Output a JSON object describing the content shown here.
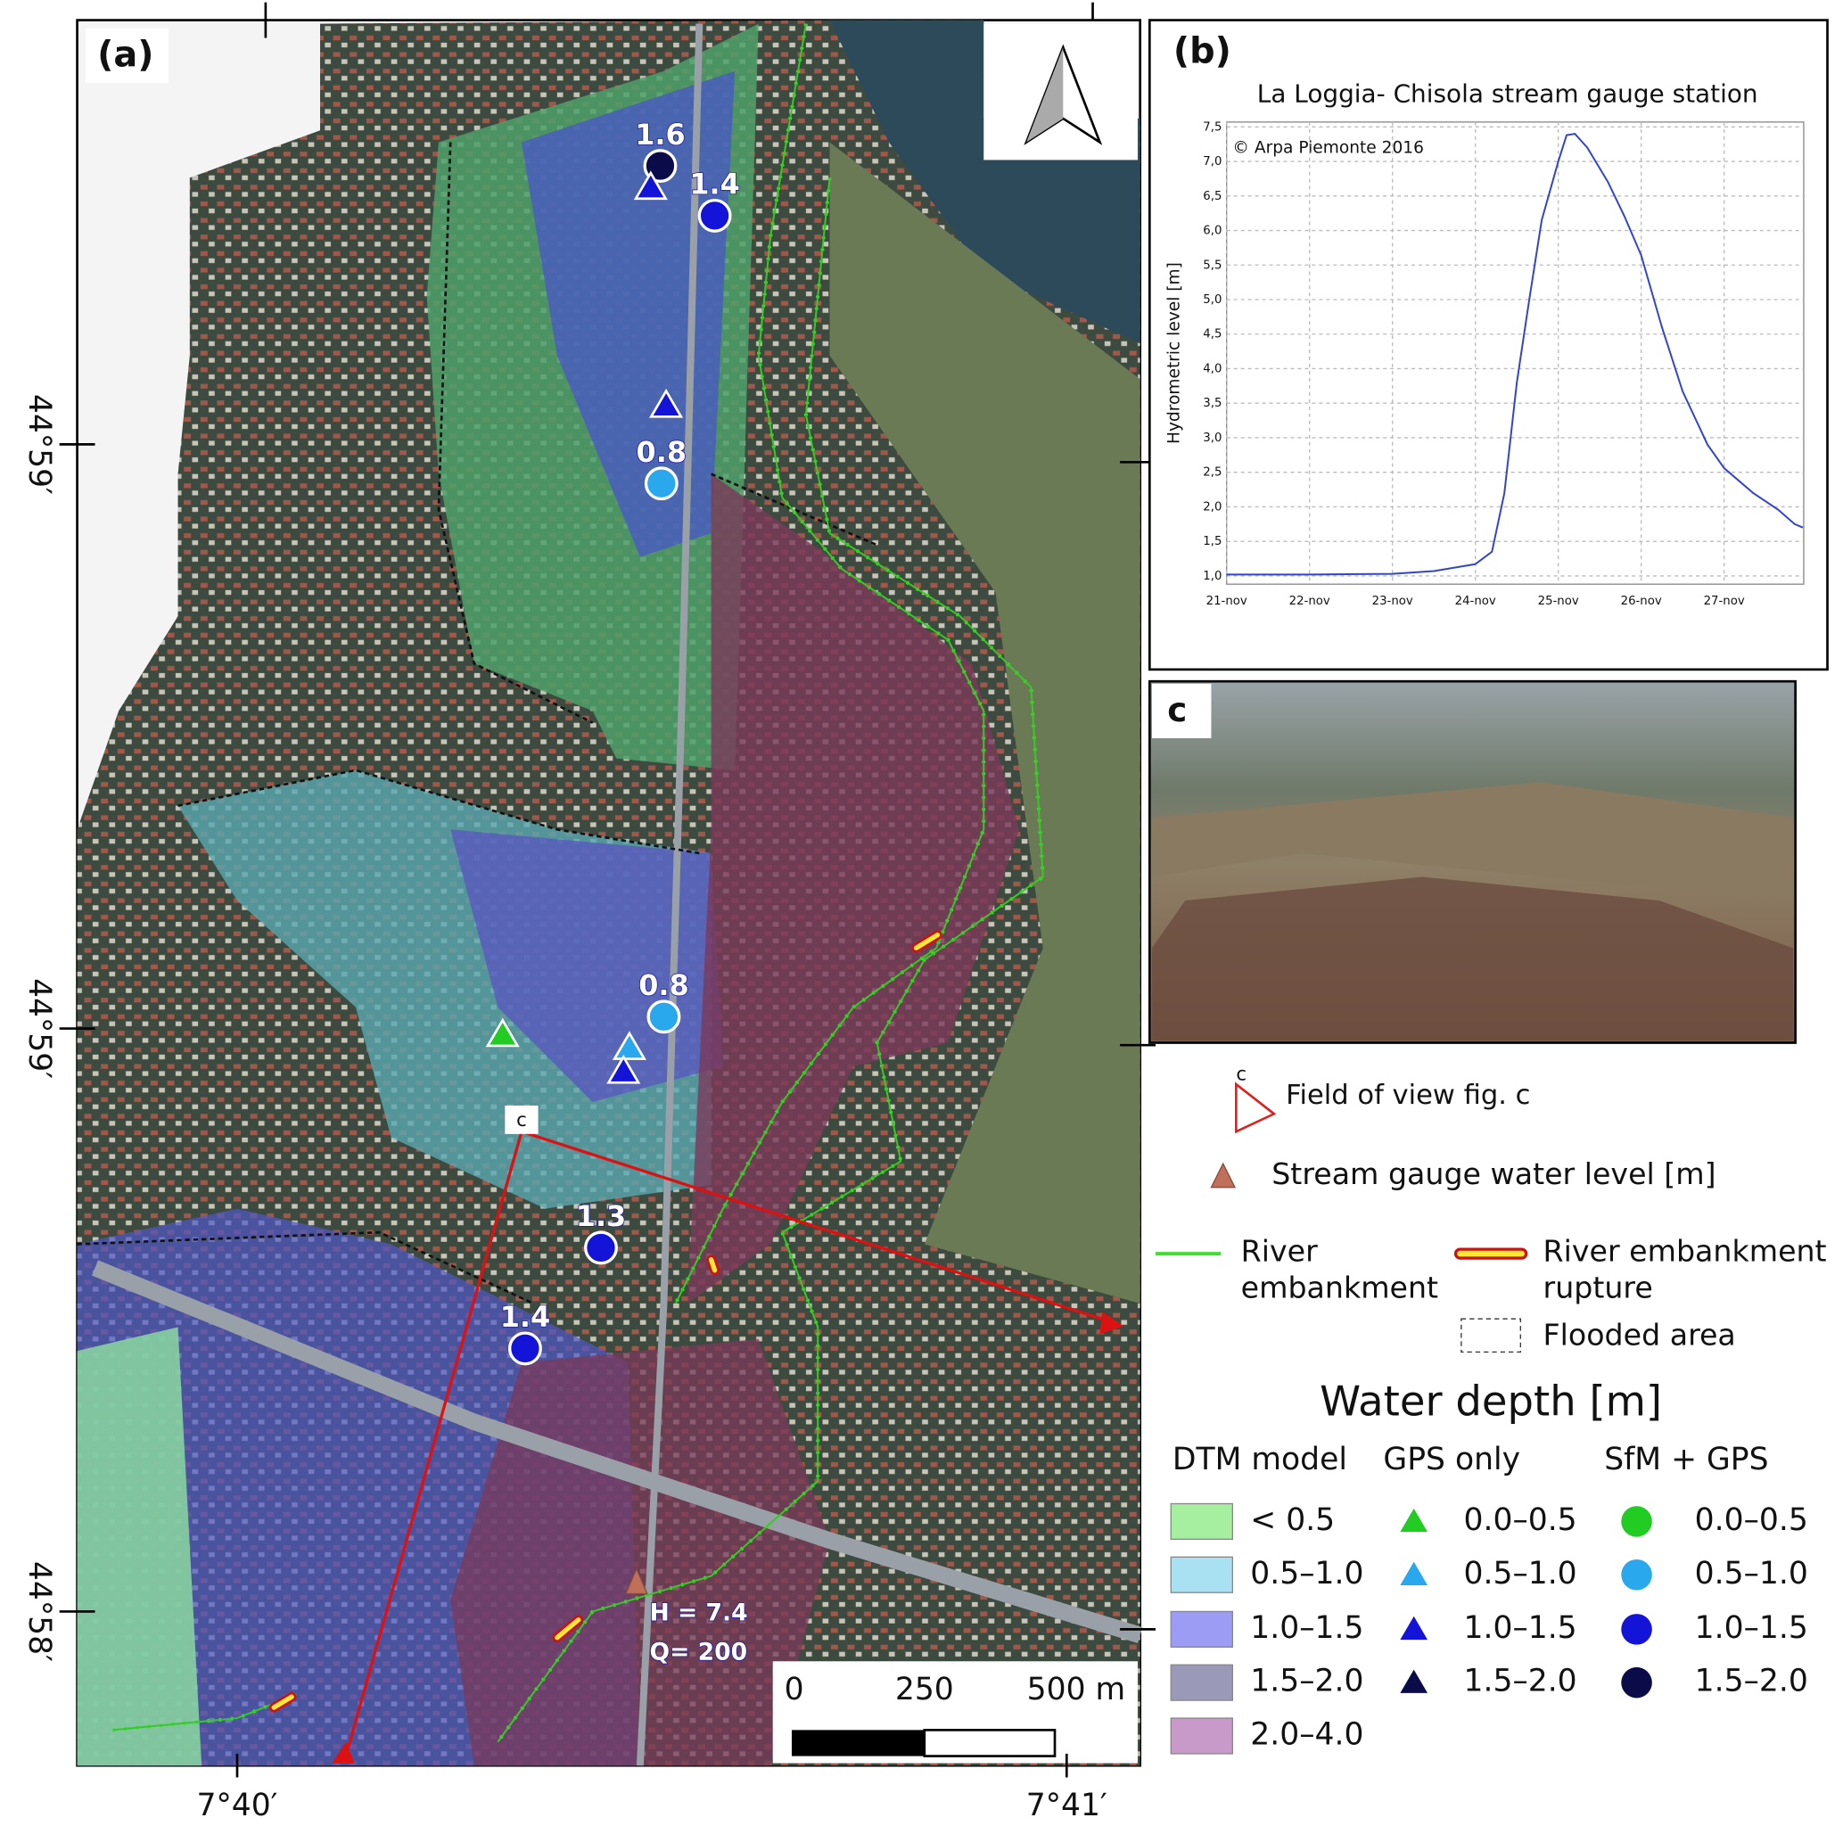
{
  "map": {
    "panel_label": "(a)",
    "lat_labels": [
      "44°59′",
      "44°59′",
      "44°58′"
    ],
    "lon_labels": [
      "7°40′",
      "7°41′"
    ],
    "markers": [
      {
        "label": "1.6",
        "shape": "circle",
        "color": "#0b0b4a"
      },
      {
        "shape": "triangle",
        "color": "#1414d8"
      },
      {
        "label": "1.4",
        "shape": "circle",
        "color": "#1414d8"
      },
      {
        "shape": "triangle",
        "color": "#1414d8"
      },
      {
        "label": "0.8",
        "shape": "circle",
        "color": "#2aa8ee"
      },
      {
        "label": "0.8",
        "shape": "circle",
        "color": "#2aa8ee"
      },
      {
        "shape": "triangle",
        "color": "#22cc22"
      },
      {
        "shape": "triangle",
        "color": "#2aa8ee"
      },
      {
        "shape": "triangle",
        "color": "#1414d8"
      },
      {
        "label": "1.3",
        "shape": "circle",
        "color": "#1414d8"
      },
      {
        "label": "1.4",
        "shape": "circle",
        "color": "#1414d8"
      }
    ],
    "view_label": "c",
    "gauge": {
      "h": "H = 7.4",
      "q": "Q= 200"
    },
    "scale_bar": [
      "0",
      "250",
      "500 m"
    ]
  },
  "chart_data": {
    "type": "line",
    "panel_label": "(b)",
    "title": "La Loggia- Chisola stream gauge station",
    "subtitle": "© Arpa Piemonte 2016",
    "y_label": "Hydrometric level [m]",
    "xlim": [
      21,
      27.96
    ],
    "ylim": [
      0.88,
      7.57
    ],
    "xticks": [
      {
        "value": 21,
        "label": "21-nov"
      },
      {
        "value": 22,
        "label": "22-nov"
      },
      {
        "value": 23,
        "label": "23-nov"
      },
      {
        "value": 24,
        "label": "24-nov"
      },
      {
        "value": 25,
        "label": "25-nov"
      },
      {
        "value": 26,
        "label": "26-nov"
      },
      {
        "value": 27,
        "label": "27-nov"
      }
    ],
    "yticks": [
      {
        "value": 1,
        "label": "1,0"
      },
      {
        "value": 1.5,
        "label": "1,5"
      },
      {
        "value": 2,
        "label": "2,0"
      },
      {
        "value": 2.5,
        "label": "2,5"
      },
      {
        "value": 3,
        "label": "3,0"
      },
      {
        "value": 3.5,
        "label": "3,5"
      },
      {
        "value": 4,
        "label": "4,0"
      },
      {
        "value": 4.5,
        "label": "4,5"
      },
      {
        "value": 5,
        "label": "5,0"
      },
      {
        "value": 5.5,
        "label": "5,5"
      },
      {
        "value": 6,
        "label": "6,0"
      },
      {
        "value": 6.5,
        "label": "6,5"
      },
      {
        "value": 7,
        "label": "7,0"
      },
      {
        "value": 7.5,
        "label": "7,5"
      }
    ],
    "grid": true,
    "color": "#3344cc",
    "x": [
      21,
      22,
      23,
      23.5,
      24,
      24.2,
      24.35,
      24.5,
      24.65,
      24.8,
      25,
      25.1,
      25.2,
      25.35,
      25.6,
      25.8,
      26,
      26.25,
      26.5,
      26.8,
      27,
      27.35,
      27.65,
      27.85,
      27.95
    ],
    "values": [
      1.02,
      1.02,
      1.03,
      1.07,
      1.17,
      1.35,
      2.2,
      3.8,
      5.0,
      6.15,
      7.0,
      7.38,
      7.4,
      7.2,
      6.7,
      6.2,
      5.64,
      4.6,
      3.67,
      2.9,
      2.56,
      2.2,
      1.96,
      1.75,
      1.7
    ]
  },
  "photo": {
    "panel_label": "c"
  },
  "legend": {
    "view_symbol_label": "c",
    "field_of_view": "Field of view fig. c",
    "stream_gauge": "Stream gauge  water level [m]",
    "river_embankment": [
      "River",
      "embankment"
    ],
    "rupture": [
      "River embankment",
      "rupture"
    ],
    "flooded_area": "Flooded area",
    "title": "Water depth [m]",
    "columns": [
      "DTM model",
      "GPS only",
      "SfM + GPS"
    ],
    "dtm": [
      {
        "label": "< 0.5",
        "color": "#a6eea0"
      },
      {
        "label": "0.5–1.0",
        "color": "#a9e0f2"
      },
      {
        "label": "1.0–1.5",
        "color": "#9c9cf4"
      },
      {
        "label": "1.5–2.0",
        "color": "#9a9ab8"
      },
      {
        "label": "2.0–4.0",
        "color": "#c79ac9"
      }
    ],
    "gps": [
      {
        "label": "0.0–0.5",
        "color": "#22cc22"
      },
      {
        "label": "0.5–1.0",
        "color": "#2aa8ee"
      },
      {
        "label": "1.0–1.5",
        "color": "#1414d8"
      },
      {
        "label": "1.5–2.0",
        "color": "#0b0b4a"
      }
    ],
    "sfm": [
      {
        "label": "0.0–0.5",
        "color": "#22cc22"
      },
      {
        "label": "0.5–1.0",
        "color": "#2aa8ee"
      },
      {
        "label": "1.0–1.5",
        "color": "#1414d8"
      },
      {
        "label": "1.5–2.0",
        "color": "#0b0b4a"
      }
    ]
  }
}
